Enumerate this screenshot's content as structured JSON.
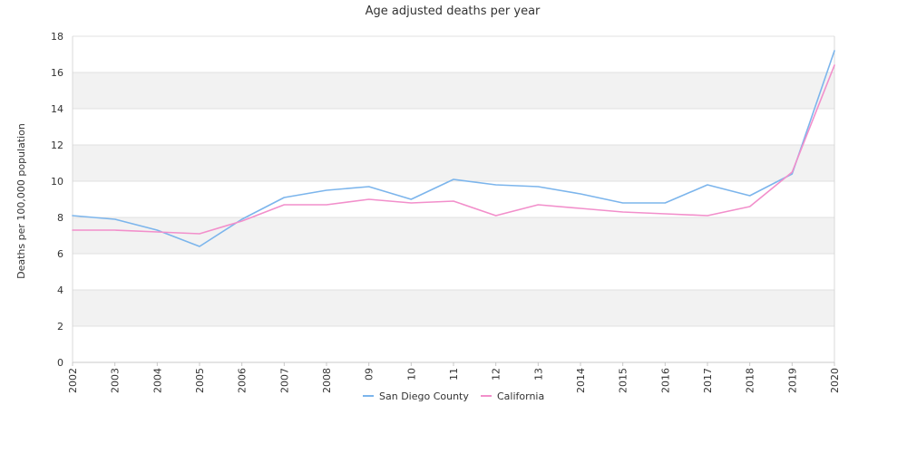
{
  "chart_data": {
    "type": "line",
    "title": "Age adjusted deaths per year",
    "xlabel": "",
    "ylabel": "Deaths per 100,000 population",
    "categories": [
      "2002",
      "2003",
      "2004",
      "2005",
      "2006",
      "2007",
      "2008",
      "09",
      "10",
      "11",
      "12",
      "13",
      "2014",
      "2015",
      "2016",
      "2017",
      "2018",
      "2019",
      "2020"
    ],
    "ylim": [
      0,
      18
    ],
    "yticks": [
      0,
      2,
      4,
      6,
      8,
      10,
      12,
      14,
      16,
      18
    ],
    "grid": "alternating horizontal bands",
    "legend_position": "bottom",
    "series": [
      {
        "name": "San Diego County",
        "color": "#7cb5ec",
        "values": [
          8.1,
          7.9,
          7.3,
          6.4,
          7.9,
          9.1,
          9.5,
          9.7,
          9.0,
          10.1,
          9.8,
          9.7,
          9.3,
          8.8,
          8.8,
          9.8,
          9.2,
          10.4,
          17.2
        ]
      },
      {
        "name": "California",
        "color": "#f28fcb",
        "values": [
          7.3,
          7.3,
          7.2,
          7.1,
          7.8,
          8.7,
          8.7,
          9.0,
          8.8,
          8.9,
          8.1,
          8.7,
          8.5,
          8.3,
          8.2,
          8.1,
          8.6,
          10.5,
          16.4
        ]
      }
    ]
  }
}
